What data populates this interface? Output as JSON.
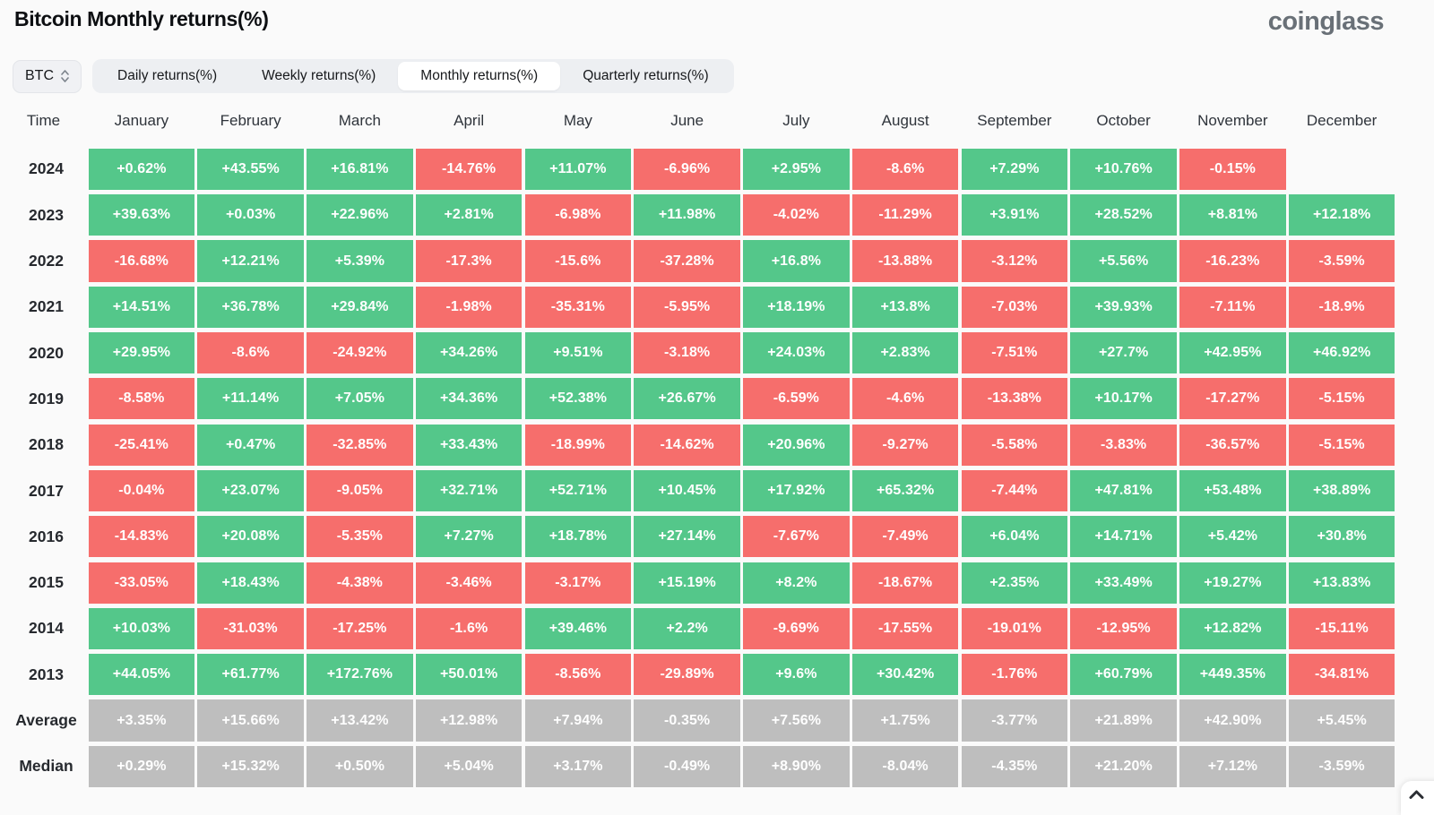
{
  "ui": {
    "header": {
      "title": "Bitcoin Monthly returns(%)",
      "logo": "coinglass"
    },
    "controls": {
      "symbol_select": {
        "value": "BTC",
        "icon": "up-down-chevrons-icon"
      },
      "tabs": [
        {
          "label": "Daily returns(%)",
          "active": false
        },
        {
          "label": "Weekly returns(%)",
          "active": false
        },
        {
          "label": "Monthly returns(%)",
          "active": true
        },
        {
          "label": "Quarterly returns(%)",
          "active": false
        }
      ]
    },
    "scroll_top_icon": "chevron-up-icon"
  },
  "colors": {
    "positive": "#54C78A",
    "negative": "#F66E6C",
    "summary": "#BEBEBE",
    "tab_bar": "#EDEFF2",
    "active_tab": "#FFFFFF",
    "logo": "#697077"
  },
  "chart_data": {
    "type": "heatmap",
    "title": "Bitcoin Monthly returns(%)",
    "unit": "%",
    "row_header": "Time",
    "columns": [
      "January",
      "February",
      "March",
      "April",
      "May",
      "June",
      "July",
      "August",
      "September",
      "October",
      "November",
      "December"
    ],
    "rows": [
      {
        "label": "2024",
        "kind": "year",
        "values": [
          "+0.62%",
          "+43.55%",
          "+16.81%",
          "-14.76%",
          "+11.07%",
          "-6.96%",
          "+2.95%",
          "-8.6%",
          "+7.29%",
          "+10.76%",
          "-0.15%",
          null
        ]
      },
      {
        "label": "2023",
        "kind": "year",
        "values": [
          "+39.63%",
          "+0.03%",
          "+22.96%",
          "+2.81%",
          "-6.98%",
          "+11.98%",
          "-4.02%",
          "-11.29%",
          "+3.91%",
          "+28.52%",
          "+8.81%",
          "+12.18%"
        ]
      },
      {
        "label": "2022",
        "kind": "year",
        "values": [
          "-16.68%",
          "+12.21%",
          "+5.39%",
          "-17.3%",
          "-15.6%",
          "-37.28%",
          "+16.8%",
          "-13.88%",
          "-3.12%",
          "+5.56%",
          "-16.23%",
          "-3.59%"
        ]
      },
      {
        "label": "2021",
        "kind": "year",
        "values": [
          "+14.51%",
          "+36.78%",
          "+29.84%",
          "-1.98%",
          "-35.31%",
          "-5.95%",
          "+18.19%",
          "+13.8%",
          "-7.03%",
          "+39.93%",
          "-7.11%",
          "-18.9%"
        ]
      },
      {
        "label": "2020",
        "kind": "year",
        "values": [
          "+29.95%",
          "-8.6%",
          "-24.92%",
          "+34.26%",
          "+9.51%",
          "-3.18%",
          "+24.03%",
          "+2.83%",
          "-7.51%",
          "+27.7%",
          "+42.95%",
          "+46.92%"
        ]
      },
      {
        "label": "2019",
        "kind": "year",
        "values": [
          "-8.58%",
          "+11.14%",
          "+7.05%",
          "+34.36%",
          "+52.38%",
          "+26.67%",
          "-6.59%",
          "-4.6%",
          "-13.38%",
          "+10.17%",
          "-17.27%",
          "-5.15%"
        ]
      },
      {
        "label": "2018",
        "kind": "year",
        "values": [
          "-25.41%",
          "+0.47%",
          "-32.85%",
          "+33.43%",
          "-18.99%",
          "-14.62%",
          "+20.96%",
          "-9.27%",
          "-5.58%",
          "-3.83%",
          "-36.57%",
          "-5.15%"
        ]
      },
      {
        "label": "2017",
        "kind": "year",
        "values": [
          "-0.04%",
          "+23.07%",
          "-9.05%",
          "+32.71%",
          "+52.71%",
          "+10.45%",
          "+17.92%",
          "+65.32%",
          "-7.44%",
          "+47.81%",
          "+53.48%",
          "+38.89%"
        ]
      },
      {
        "label": "2016",
        "kind": "year",
        "values": [
          "-14.83%",
          "+20.08%",
          "-5.35%",
          "+7.27%",
          "+18.78%",
          "+27.14%",
          "-7.67%",
          "-7.49%",
          "+6.04%",
          "+14.71%",
          "+5.42%",
          "+30.8%"
        ]
      },
      {
        "label": "2015",
        "kind": "year",
        "values": [
          "-33.05%",
          "+18.43%",
          "-4.38%",
          "-3.46%",
          "-3.17%",
          "+15.19%",
          "+8.2%",
          "-18.67%",
          "+2.35%",
          "+33.49%",
          "+19.27%",
          "+13.83%"
        ]
      },
      {
        "label": "2014",
        "kind": "year",
        "values": [
          "+10.03%",
          "-31.03%",
          "-17.25%",
          "-1.6%",
          "+39.46%",
          "+2.2%",
          "-9.69%",
          "-17.55%",
          "-19.01%",
          "-12.95%",
          "+12.82%",
          "-15.11%"
        ]
      },
      {
        "label": "2013",
        "kind": "year",
        "values": [
          "+44.05%",
          "+61.77%",
          "+172.76%",
          "+50.01%",
          "-8.56%",
          "-29.89%",
          "+9.6%",
          "+30.42%",
          "-1.76%",
          "+60.79%",
          "+449.35%",
          "-34.81%"
        ]
      },
      {
        "label": "Average",
        "kind": "summary",
        "values": [
          "+3.35%",
          "+15.66%",
          "+13.42%",
          "+12.98%",
          "+7.94%",
          "-0.35%",
          "+7.56%",
          "+1.75%",
          "-3.77%",
          "+21.89%",
          "+42.90%",
          "+5.45%"
        ]
      },
      {
        "label": "Median",
        "kind": "summary",
        "values": [
          "+0.29%",
          "+15.32%",
          "+0.50%",
          "+5.04%",
          "+3.17%",
          "-0.49%",
          "+8.90%",
          "-8.04%",
          "-4.35%",
          "+21.20%",
          "+7.12%",
          "-3.59%"
        ]
      }
    ]
  }
}
